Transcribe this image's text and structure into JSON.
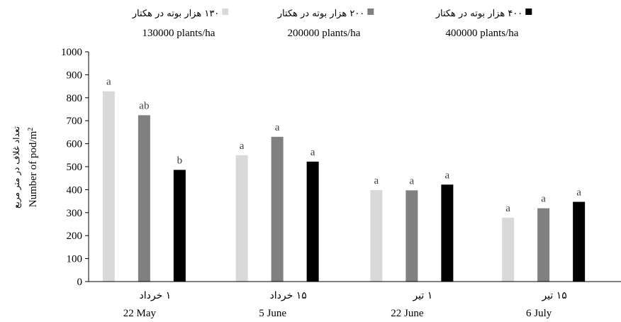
{
  "chart_data": {
    "type": "bar",
    "categories": [
      {
        "fa": "۱ خرداد",
        "en": "22 May"
      },
      {
        "fa": "۱۵ خرداد",
        "en": "5 June"
      },
      {
        "fa": "۱ تیر",
        "en": "22 June"
      },
      {
        "fa": "۱۵ تیر",
        "en": "6 July"
      }
    ],
    "series": [
      {
        "name_fa": "۱۳۰ هزار بوته در هکتار",
        "name_en": "130000 plants/ha",
        "color": "#d9d9d9",
        "values": [
          828,
          550,
          398,
          278
        ],
        "letters": [
          "a",
          "a",
          "a",
          "a"
        ]
      },
      {
        "name_fa": "۲۰۰ هزار بوته در هکتار",
        "name_en": "200000 plants/ha",
        "color": "#808080",
        "values": [
          724,
          630,
          397,
          319
        ],
        "letters": [
          "ab",
          "a",
          "a",
          "a"
        ]
      },
      {
        "name_fa": "۴۰۰ هزار بوته در هکتار",
        "name_en": "400000 plants/ha",
        "color": "#000000",
        "values": [
          486,
          522,
          422,
          347
        ],
        "letters": [
          "b",
          "a",
          "a",
          "a"
        ]
      }
    ],
    "ylabel_fa": "تعداد غلاف در متر مربع",
    "ylabel_en": "Number of pod/m",
    "ylabel_sup": "2",
    "ylim": [
      0,
      1000
    ],
    "yticks": [
      "0",
      "100",
      "200",
      "300",
      "400",
      "500",
      "600",
      "700",
      "800",
      "900",
      "1000"
    ],
    "grid": false,
    "legend_position": "top"
  }
}
